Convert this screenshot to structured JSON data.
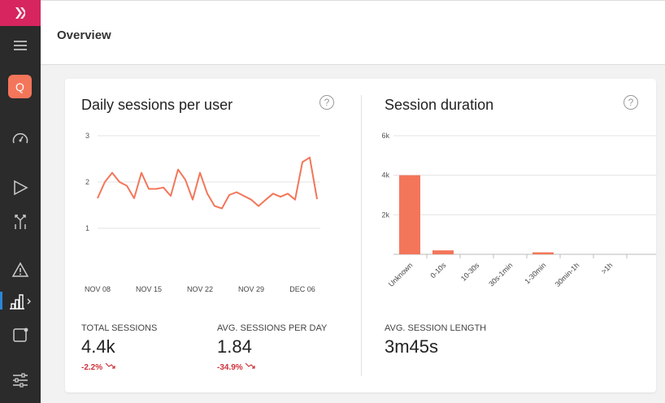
{
  "sidebar": {
    "icons": [
      "logo-icon",
      "menu-icon",
      "avatar",
      "speedometer-icon",
      "play-icon",
      "split-icon",
      "warning-icon",
      "bar-chart-icon",
      "panel-icon",
      "sliders-icon"
    ],
    "avatar_letter": "Q",
    "brand_color": "#d6255f"
  },
  "header": {
    "title": "Overview"
  },
  "daily_sessions": {
    "title": "Daily sessions per user",
    "help": "?",
    "stats": [
      {
        "label": "TOTAL SESSIONS",
        "value": "4.4k",
        "change": "-2.2%"
      },
      {
        "label": "AVG. SESSIONS PER DAY",
        "value": "1.84",
        "change": "-34.9%"
      }
    ]
  },
  "session_duration": {
    "title": "Session duration",
    "help": "?",
    "stats": [
      {
        "label": "AVG. SESSION LENGTH",
        "value": "3m45s"
      }
    ]
  },
  "chart_data": [
    {
      "type": "line",
      "title": "Daily sessions per user",
      "x_tick_labels": [
        "NOV 08",
        "NOV 15",
        "NOV 22",
        "NOV 29",
        "DEC 06"
      ],
      "y_tick_labels": [
        "1",
        "2",
        "3"
      ],
      "ylim": [
        0,
        3
      ],
      "grid": true,
      "color": "#f3765a",
      "series": [
        {
          "values": [
            1.65,
            2.0,
            2.2,
            2.0,
            1.92,
            1.65,
            2.2,
            1.85,
            1.85,
            1.88,
            1.7,
            2.27,
            2.05,
            1.62,
            2.2,
            1.75,
            1.48,
            1.43,
            1.72,
            1.78,
            1.7,
            1.62,
            1.48,
            1.62,
            1.75,
            1.68,
            1.75,
            1.62,
            2.43,
            2.53,
            1.63
          ]
        }
      ]
    },
    {
      "type": "bar",
      "title": "Session duration",
      "categories": [
        "Unknown",
        "0-10s",
        "10-30s",
        "30s-1min",
        "1-30min",
        "30min-1h",
        ">1h"
      ],
      "values": [
        4000,
        200,
        0,
        0,
        100,
        0,
        0
      ],
      "y_tick_labels": [
        "2k",
        "4k",
        "6k"
      ],
      "ylim": [
        0,
        6000
      ],
      "grid": true,
      "color": "#f3765a"
    }
  ]
}
